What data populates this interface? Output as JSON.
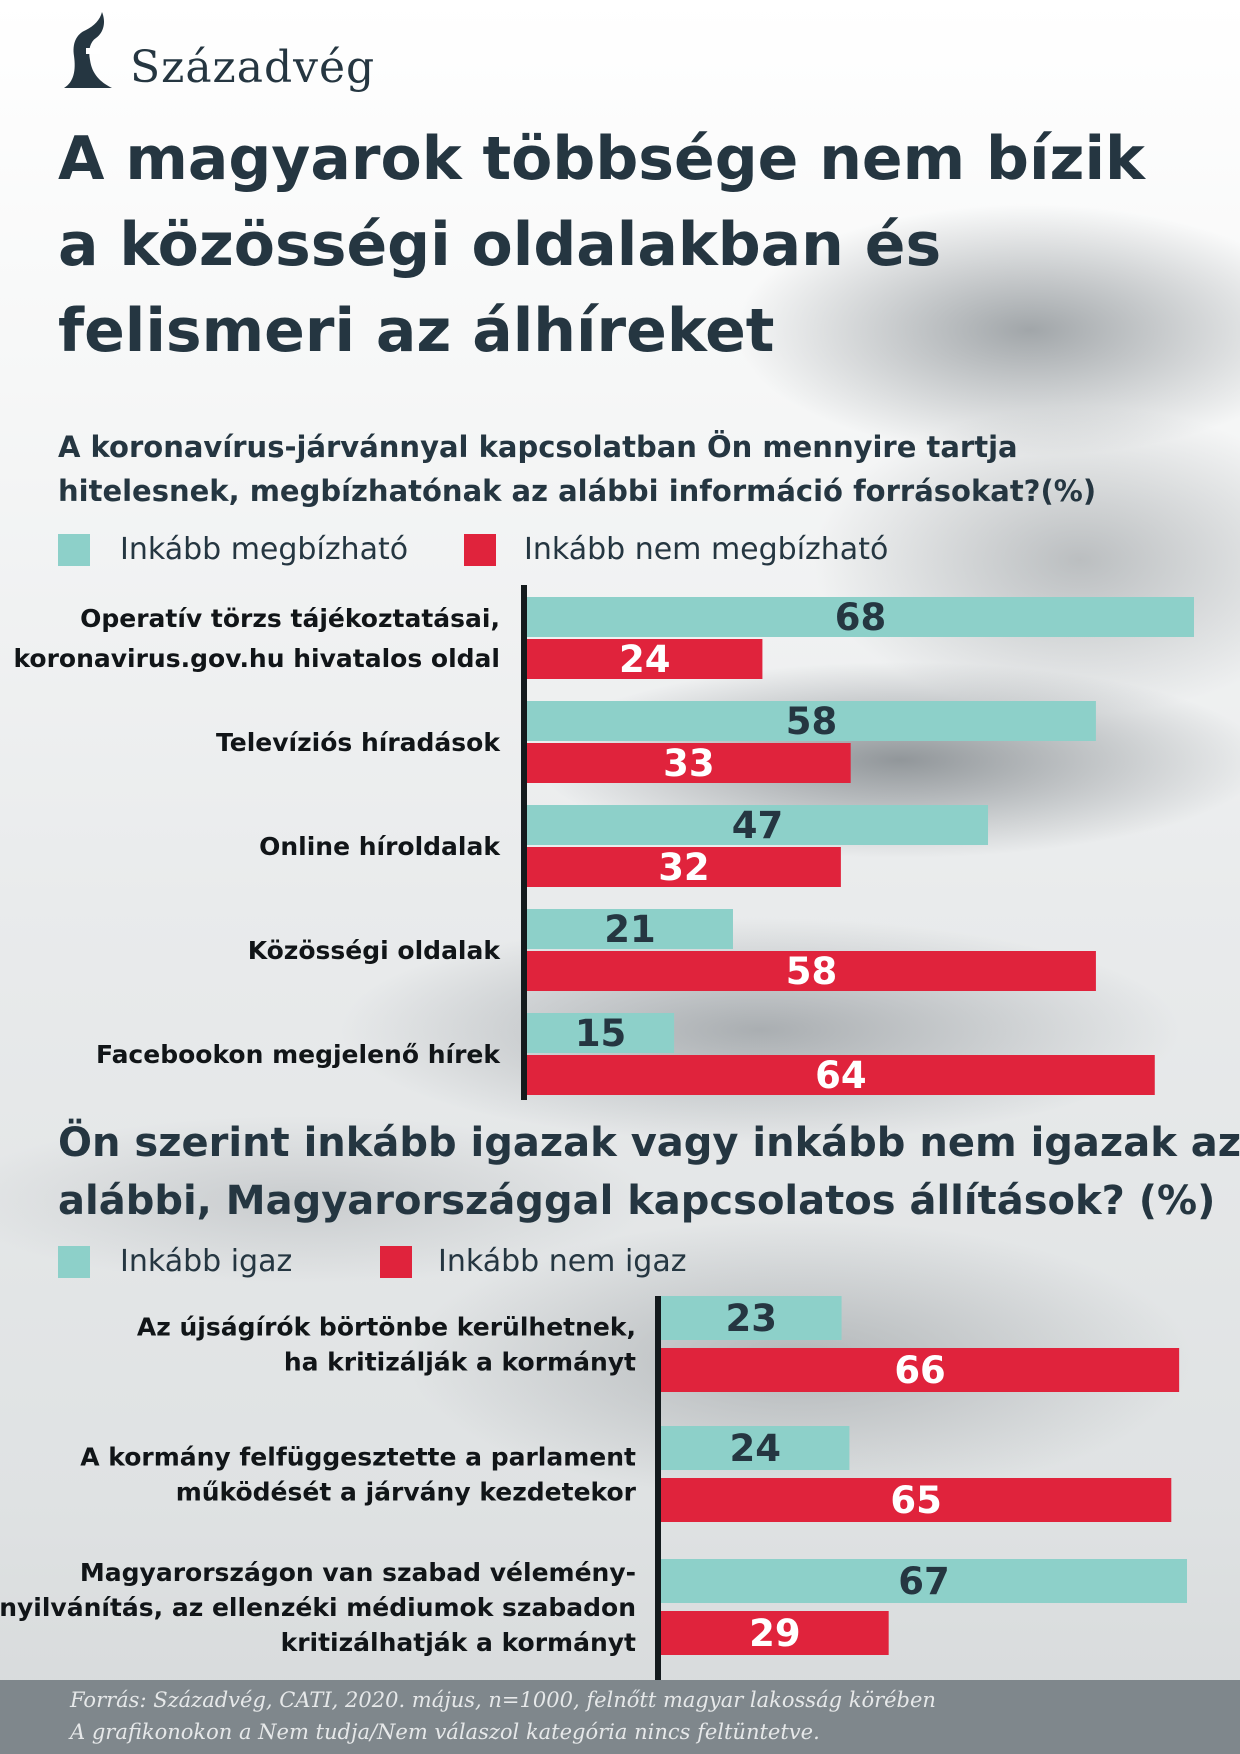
{
  "logo": {
    "text": "Századvég"
  },
  "title_lines": [
    "A magyarok többsége nem bízik",
    "a közösségi oldalakban és",
    "felismeri az álhíreket"
  ],
  "colors": {
    "agree": "#8dd0c9",
    "disagree": "#e0233c",
    "text": "#253641",
    "footer": "#7f878c"
  },
  "chart_data": [
    {
      "type": "bar",
      "orientation": "horizontal",
      "title_lines": [
        "A koronavírus-járvánnyal kapcsolatban Ön mennyire tartja",
        "hitelesnek, megbízhatónak az alábbi információ forrásokat?(%)"
      ],
      "categories": [
        [
          "Operatív törzs tájékoztatásai,",
          "koronavirus.gov.hu hivatalos oldal"
        ],
        [
          "Televíziós híradások"
        ],
        [
          "Online híroldalak"
        ],
        [
          "Közösségi oldalak"
        ],
        [
          "Facebookon megjelenő hírek"
        ]
      ],
      "series": [
        {
          "name": "Inkább megbízható",
          "color": "#8dd0c9",
          "values": [
            68,
            58,
            47,
            21,
            15
          ]
        },
        {
          "name": "Inkább nem megbízható",
          "color": "#e0233c",
          "values": [
            24,
            33,
            32,
            58,
            64
          ]
        }
      ],
      "xlim": [
        0,
        68
      ]
    },
    {
      "type": "bar",
      "orientation": "horizontal",
      "title_lines": [
        "Ön szerint inkább igazak vagy inkább nem igazak az",
        "alábbi, Magyarországgal kapcsolatos állítások? (%)"
      ],
      "categories": [
        [
          "Az újságírók börtönbe kerülhetnek,",
          "ha kritizálják a kormányt"
        ],
        [
          "A kormány felfüggesztette a parlament",
          "működését a járvány kezdetekor"
        ],
        [
          "Magyarországon van szabad vélemény-",
          "nyilvánítás, az ellenzéki médiumok szabadon",
          "kritizálhatják a kormányt"
        ]
      ],
      "series": [
        {
          "name": "Inkább igaz",
          "color": "#8dd0c9",
          "values": [
            23,
            24,
            67
          ]
        },
        {
          "name": "Inkább nem igaz",
          "color": "#e0233c",
          "values": [
            66,
            65,
            29
          ]
        }
      ],
      "xlim": [
        0,
        67
      ]
    }
  ],
  "footer": {
    "source": "Forrás: Századvég, CATI, 2020. május, n=1000, felnőtt magyar lakosság körében",
    "note": "A grafikonokon a Nem tudja/Nem válaszol kategória nincs feltüntetve."
  }
}
